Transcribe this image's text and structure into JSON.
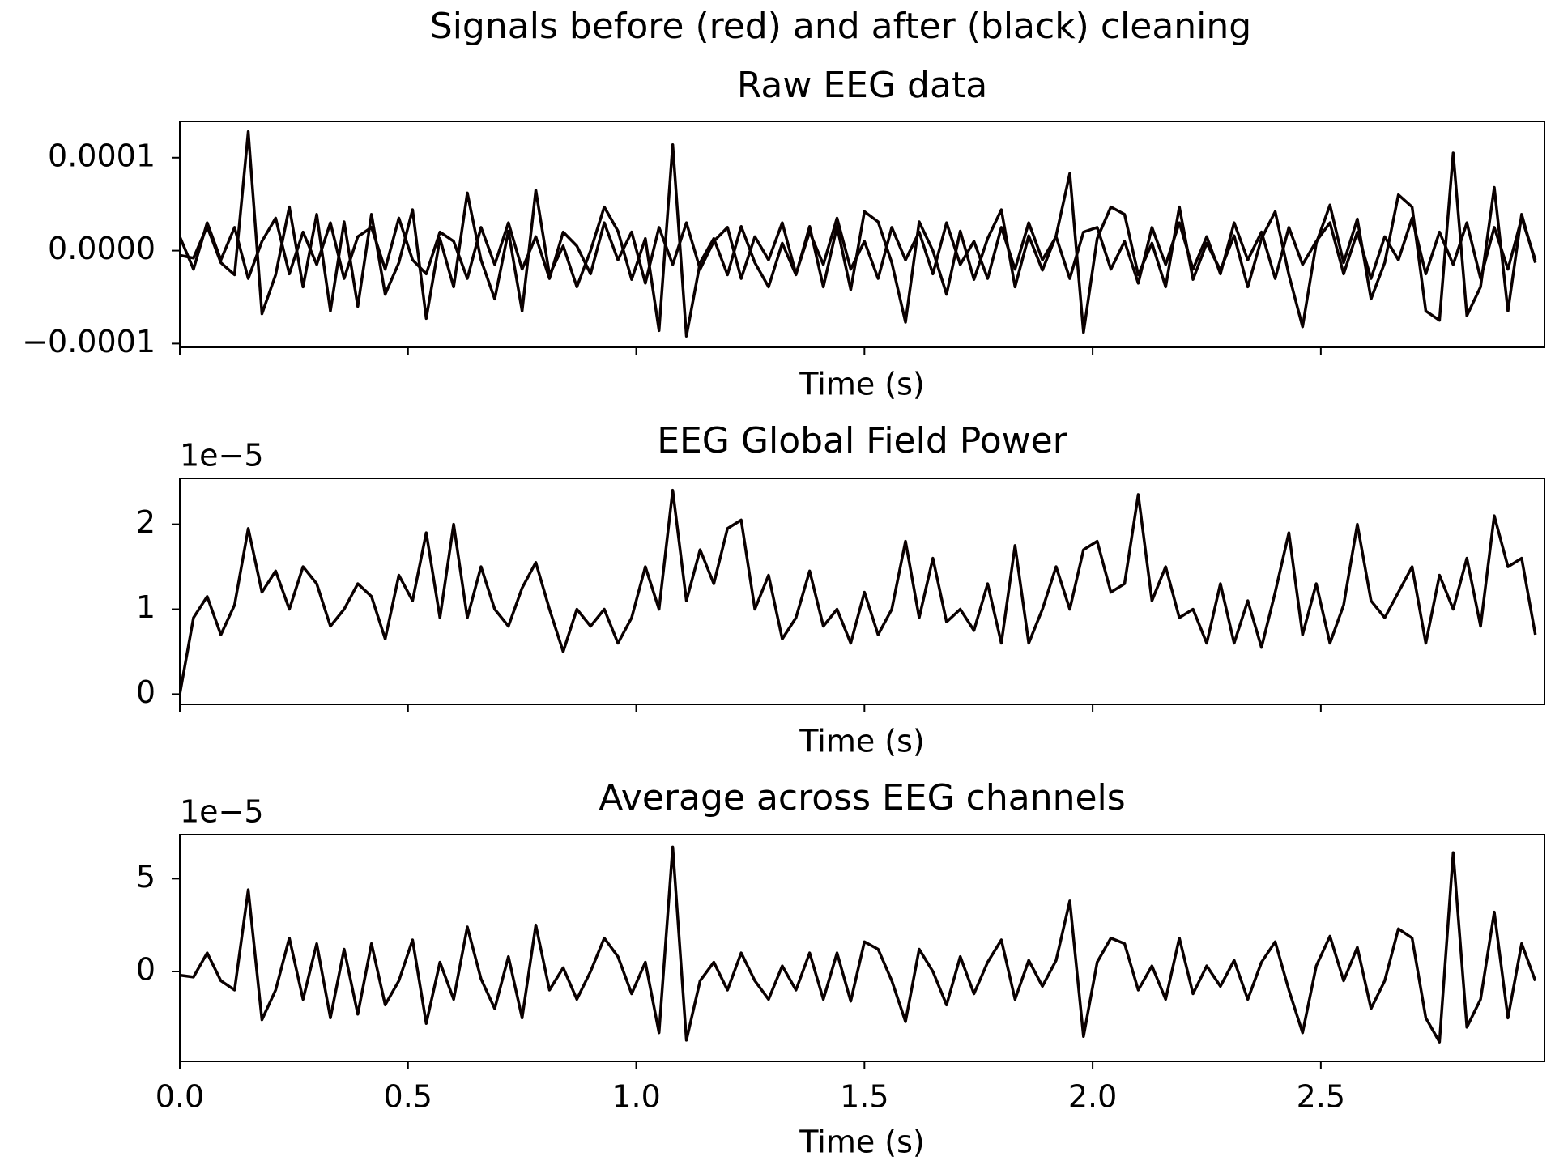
{
  "title": "Signals before (red) and after (black) cleaning",
  "chart_data": [
    {
      "type": "line",
      "title": "Raw EEG data",
      "xlabel": "Time (s)",
      "show_xtick_labels": false,
      "xlim": [
        0,
        2.99
      ],
      "ylim": [
        -0.000104,
        0.000139
      ],
      "xticks": [
        0,
        0.5,
        1,
        1.5,
        2,
        2.5
      ],
      "yticks": [
        {
          "value": -0.0001,
          "label": "−0.0001"
        },
        {
          "value": 0,
          "label": "0.0000"
        },
        0.0001
      ],
      "x": [
        0,
        0.03,
        0.06,
        0.09,
        0.12,
        0.15,
        0.18,
        0.21,
        0.24,
        0.27,
        0.3,
        0.33,
        0.36,
        0.39,
        0.42,
        0.45,
        0.48,
        0.51,
        0.54,
        0.57,
        0.6,
        0.63,
        0.66,
        0.69,
        0.72,
        0.75,
        0.78,
        0.81,
        0.84,
        0.87,
        0.9,
        0.93,
        0.96,
        0.99,
        1.02,
        1.05,
        1.08,
        1.11,
        1.14,
        1.17,
        1.2,
        1.23,
        1.26,
        1.29,
        1.32,
        1.35,
        1.38,
        1.41,
        1.44,
        1.47,
        1.5,
        1.53,
        1.56,
        1.59,
        1.62,
        1.65,
        1.68,
        1.71,
        1.74,
        1.77,
        1.8,
        1.83,
        1.86,
        1.89,
        1.92,
        1.95,
        1.98,
        2.01,
        2.04,
        2.07,
        2.1,
        2.13,
        2.16,
        2.19,
        2.22,
        2.25,
        2.28,
        2.31,
        2.34,
        2.37,
        2.4,
        2.43,
        2.46,
        2.49,
        2.52,
        2.55,
        2.58,
        2.61,
        2.64,
        2.67,
        2.7,
        2.73,
        2.76,
        2.79,
        2.82,
        2.85,
        2.88,
        2.91,
        2.94,
        2.97
      ],
      "series": [
        {
          "color": "#0a0000",
          "values": [
            -5e-06,
            -8e-06,
            2.6e-05,
            -1.3e-05,
            -2.6e-05,
            0.000128,
            -6.8e-05,
            -2.6e-05,
            4.7e-05,
            -3.9e-05,
            3.9e-05,
            -6.5e-05,
            3.1e-05,
            -6e-05,
            3.9e-05,
            -4.7e-05,
            -1.3e-05,
            4.4e-05,
            -7.3e-05,
            1.3e-05,
            -3.9e-05,
            6.2e-05,
            -1e-05,
            -5.2e-05,
            2.1e-05,
            -6.5e-05,
            6.5e-05,
            -2.6e-05,
            5e-06,
            -3.9e-05,
            0,
            4.7e-05,
            2.1e-05,
            -3.1e-05,
            1.3e-05,
            -8.6e-05,
            0.000114,
            -9.2e-05,
            -1.3e-05,
            1.3e-05,
            -2.6e-05,
            2.6e-05,
            -1.3e-05,
            -3.9e-05,
            8e-06,
            -2.6e-05,
            2.6e-05,
            -3.9e-05,
            2.6e-05,
            -4.2e-05,
            4.2e-05,
            3.1e-05,
            -1.3e-05,
            -7.7e-05,
            3.1e-05,
            0,
            -4.7e-05,
            2.1e-05,
            -3.1e-05,
            1.3e-05,
            4.4e-05,
            -3.9e-05,
            1.6e-05,
            -2.1e-05,
            1.6e-05,
            8.3e-05,
            -8.8e-05,
            1.3e-05,
            4.7e-05,
            3.9e-05,
            -2.6e-05,
            8e-06,
            -3.9e-05,
            4.7e-05,
            -3.1e-05,
            8e-06,
            -2.1e-05,
            1.6e-05,
            -3.9e-05,
            1.3e-05,
            4.2e-05,
            -2.6e-05,
            -8.2e-05,
            8e-06,
            4.9e-05,
            -1.3e-05,
            3.4e-05,
            -5.2e-05,
            -1.3e-05,
            6e-05,
            4.7e-05,
            -6.5e-05,
            -7.5e-05,
            0.000105,
            -7e-05,
            -3.9e-05,
            6.8e-05,
            -6.5e-05,
            3.9e-05,
            -1.3e-05
          ]
        },
        {
          "color": "#0a0000",
          "values": [
            1.5e-05,
            -2e-05,
            3e-05,
            -1e-05,
            2.5e-05,
            -3e-05,
            1e-05,
            3.5e-05,
            -2.5e-05,
            2e-05,
            -1.5e-05,
            3e-05,
            -3e-05,
            1.5e-05,
            2.5e-05,
            -2e-05,
            3.5e-05,
            -1e-05,
            -2.5e-05,
            2e-05,
            1e-05,
            -3e-05,
            2.5e-05,
            -1.5e-05,
            3e-05,
            -2e-05,
            1.5e-05,
            -3e-05,
            2e-05,
            5e-06,
            -2.5e-05,
            3e-05,
            -1e-05,
            2e-05,
            -3.5e-05,
            2.5e-05,
            -1.5e-05,
            3e-05,
            -2e-05,
            1e-05,
            2.5e-05,
            -3e-05,
            1.5e-05,
            -1e-05,
            3e-05,
            -2.5e-05,
            2e-05,
            -1.5e-05,
            3.5e-05,
            -2e-05,
            1e-05,
            -3e-05,
            2.5e-05,
            -1e-05,
            2e-05,
            -2.5e-05,
            3e-05,
            -1.5e-05,
            1e-05,
            -3e-05,
            2.5e-05,
            -2e-05,
            3e-05,
            -1e-05,
            1.5e-05,
            -3e-05,
            2e-05,
            2.5e-05,
            -2e-05,
            1e-05,
            -3.5e-05,
            2.5e-05,
            -1.5e-05,
            3e-05,
            -2e-05,
            1.5e-05,
            -2.5e-05,
            3e-05,
            -1e-05,
            2e-05,
            -3e-05,
            2.5e-05,
            -1.5e-05,
            1e-05,
            3e-05,
            -2.5e-05,
            2e-05,
            -3e-05,
            1.5e-05,
            -1e-05,
            3.5e-05,
            -2.5e-05,
            2e-05,
            -1.5e-05,
            3e-05,
            -3e-05,
            2.5e-05,
            -2e-05,
            3.5e-05,
            -1e-05
          ]
        }
      ]
    },
    {
      "type": "line",
      "title": "EEG Global Field Power",
      "xlabel": "Time (s)",
      "show_xtick_labels": false,
      "y_offset_label": "1e−5",
      "xlim": [
        0,
        2.99
      ],
      "ylim": [
        -0.12,
        2.54
      ],
      "xticks": [
        0,
        0.5,
        1,
        1.5,
        2,
        2.5
      ],
      "yticks": [
        0,
        1,
        2
      ],
      "x": [
        0,
        0.03,
        0.06,
        0.09,
        0.12,
        0.15,
        0.18,
        0.21,
        0.24,
        0.27,
        0.3,
        0.33,
        0.36,
        0.39,
        0.42,
        0.45,
        0.48,
        0.51,
        0.54,
        0.57,
        0.6,
        0.63,
        0.66,
        0.69,
        0.72,
        0.75,
        0.78,
        0.81,
        0.84,
        0.87,
        0.9,
        0.93,
        0.96,
        0.99,
        1.02,
        1.05,
        1.08,
        1.11,
        1.14,
        1.17,
        1.2,
        1.23,
        1.26,
        1.29,
        1.32,
        1.35,
        1.38,
        1.41,
        1.44,
        1.47,
        1.5,
        1.53,
        1.56,
        1.59,
        1.62,
        1.65,
        1.68,
        1.71,
        1.74,
        1.77,
        1.8,
        1.83,
        1.86,
        1.89,
        1.92,
        1.95,
        1.98,
        2.01,
        2.04,
        2.07,
        2.1,
        2.13,
        2.16,
        2.19,
        2.22,
        2.25,
        2.28,
        2.31,
        2.34,
        2.37,
        2.4,
        2.43,
        2.46,
        2.49,
        2.52,
        2.55,
        2.58,
        2.61,
        2.64,
        2.67,
        2.7,
        2.73,
        2.76,
        2.79,
        2.82,
        2.85,
        2.88,
        2.91,
        2.94,
        2.97
      ],
      "series": [
        {
          "color": "#0a0000",
          "values": [
            0,
            0.9,
            1.15,
            0.7,
            1.05,
            1.95,
            1.2,
            1.45,
            1.0,
            1.5,
            1.3,
            0.8,
            1.0,
            1.3,
            1.15,
            0.65,
            1.4,
            1.1,
            1.9,
            0.9,
            2.0,
            0.9,
            1.5,
            1.0,
            0.8,
            1.25,
            1.55,
            1.0,
            0.5,
            1.0,
            0.8,
            1.0,
            0.6,
            0.9,
            1.5,
            1.0,
            2.4,
            1.1,
            1.7,
            1.3,
            1.95,
            2.05,
            1.0,
            1.4,
            0.65,
            0.9,
            1.45,
            0.8,
            1.0,
            0.6,
            1.2,
            0.7,
            1.0,
            1.8,
            0.9,
            1.6,
            0.85,
            1.0,
            0.75,
            1.3,
            0.6,
            1.75,
            0.6,
            1.0,
            1.5,
            1.0,
            1.7,
            1.8,
            1.2,
            1.3,
            2.35,
            1.1,
            1.5,
            0.9,
            1.0,
            0.6,
            1.3,
            0.6,
            1.1,
            0.55,
            1.2,
            1.9,
            0.7,
            1.3,
            0.6,
            1.05,
            2.0,
            1.1,
            0.9,
            1.2,
            1.5,
            0.6,
            1.4,
            1.0,
            1.6,
            0.8,
            2.1,
            1.5,
            1.6,
            0.7
          ]
        }
      ]
    },
    {
      "type": "line",
      "title": "Average across EEG channels",
      "xlabel": "Time (s)",
      "show_xtick_labels": true,
      "y_offset_label": "1e−5",
      "xlim": [
        0,
        2.99
      ],
      "ylim": [
        -4.84,
        7.37
      ],
      "xticks": [
        {
          "value": 0,
          "label": "0.0"
        },
        0.5,
        {
          "value": 1,
          "label": "1.0"
        },
        1.5,
        {
          "value": 2,
          "label": "2.0"
        },
        2.5
      ],
      "yticks": [
        0,
        5
      ],
      "x": [
        0,
        0.03,
        0.06,
        0.09,
        0.12,
        0.15,
        0.18,
        0.21,
        0.24,
        0.27,
        0.3,
        0.33,
        0.36,
        0.39,
        0.42,
        0.45,
        0.48,
        0.51,
        0.54,
        0.57,
        0.6,
        0.63,
        0.66,
        0.69,
        0.72,
        0.75,
        0.78,
        0.81,
        0.84,
        0.87,
        0.9,
        0.93,
        0.96,
        0.99,
        1.02,
        1.05,
        1.08,
        1.11,
        1.14,
        1.17,
        1.2,
        1.23,
        1.26,
        1.29,
        1.32,
        1.35,
        1.38,
        1.41,
        1.44,
        1.47,
        1.5,
        1.53,
        1.56,
        1.59,
        1.62,
        1.65,
        1.68,
        1.71,
        1.74,
        1.77,
        1.8,
        1.83,
        1.86,
        1.89,
        1.92,
        1.95,
        1.98,
        2.01,
        2.04,
        2.07,
        2.1,
        2.13,
        2.16,
        2.19,
        2.22,
        2.25,
        2.28,
        2.31,
        2.34,
        2.37,
        2.4,
        2.43,
        2.46,
        2.49,
        2.52,
        2.55,
        2.58,
        2.61,
        2.64,
        2.67,
        2.7,
        2.73,
        2.76,
        2.79,
        2.82,
        2.85,
        2.88,
        2.91,
        2.94,
        2.97
      ],
      "series": [
        {
          "color": "#0a0000",
          "values": [
            -0.2,
            -0.3,
            1.0,
            -0.5,
            -1.0,
            4.4,
            -2.6,
            -1.0,
            1.8,
            -1.5,
            1.5,
            -2.5,
            1.2,
            -2.3,
            1.5,
            -1.8,
            -0.5,
            1.7,
            -2.8,
            0.5,
            -1.5,
            2.4,
            -0.4,
            -2.0,
            0.8,
            -2.5,
            2.5,
            -1.0,
            0.2,
            -1.5,
            0.0,
            1.8,
            0.8,
            -1.2,
            0.5,
            -3.3,
            6.7,
            -3.7,
            -0.5,
            0.5,
            -1.0,
            1.0,
            -0.5,
            -1.5,
            0.3,
            -1.0,
            1.0,
            -1.5,
            1.0,
            -1.6,
            1.6,
            1.2,
            -0.5,
            -2.7,
            1.2,
            0.0,
            -1.8,
            0.8,
            -1.2,
            0.5,
            1.7,
            -1.5,
            0.6,
            -0.8,
            0.6,
            3.8,
            -3.5,
            0.5,
            1.8,
            1.5,
            -1.0,
            0.3,
            -1.5,
            1.8,
            -1.2,
            0.3,
            -0.8,
            0.6,
            -1.5,
            0.5,
            1.6,
            -1.0,
            -3.3,
            0.3,
            1.9,
            -0.5,
            1.3,
            -2.0,
            -0.5,
            2.3,
            1.8,
            -2.5,
            -3.8,
            6.4,
            -3.0,
            -1.5,
            3.2,
            -2.5,
            1.5,
            -0.5
          ]
        }
      ]
    }
  ]
}
